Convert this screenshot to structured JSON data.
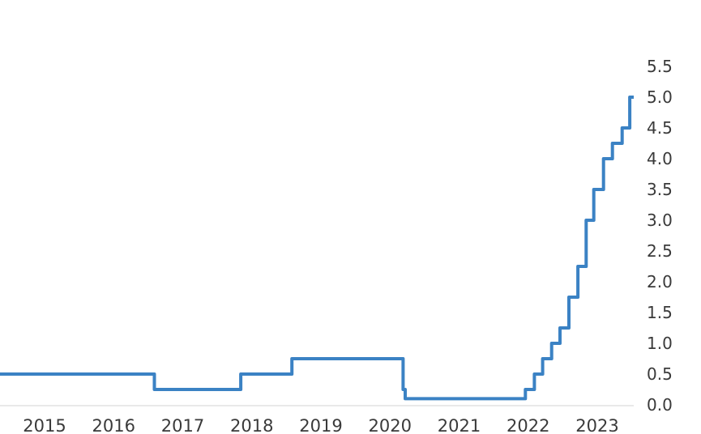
{
  "chart_data": {
    "type": "line",
    "subtype": "step-after",
    "title": "",
    "xlabel": "",
    "ylabel": "",
    "legend": "none",
    "grid": false,
    "y_axis_side": "right",
    "xlim": [
      2014.355,
      2023.528
    ],
    "ylim": [
      0.0,
      5.5
    ],
    "x_ticks": [
      2015,
      2016,
      2017,
      2018,
      2019,
      2020,
      2021,
      2022,
      2023
    ],
    "x_tick_labels": [
      "2015",
      "2016",
      "2017",
      "2018",
      "2019",
      "2020",
      "2021",
      "2022",
      "2023"
    ],
    "y_ticks": [
      0.0,
      0.5,
      1.0,
      1.5,
      2.0,
      2.5,
      3.0,
      3.5,
      4.0,
      4.5,
      5.0,
      5.5
    ],
    "y_tick_labels": [
      "0.0",
      "0.5",
      "1.0",
      "1.5",
      "2.0",
      "2.5",
      "3.0",
      "3.5",
      "4.0",
      "4.5",
      "5.0",
      "5.5"
    ],
    "series": [
      {
        "color": "#3b82c4",
        "points": [
          {
            "x": 2014.355,
            "y": 0.5
          },
          {
            "x": 2016.59,
            "y": 0.25
          },
          {
            "x": 2017.84,
            "y": 0.5
          },
          {
            "x": 2018.58,
            "y": 0.75
          },
          {
            "x": 2020.19,
            "y": 0.25
          },
          {
            "x": 2020.22,
            "y": 0.1
          },
          {
            "x": 2021.96,
            "y": 0.25
          },
          {
            "x": 2022.09,
            "y": 0.5
          },
          {
            "x": 2022.21,
            "y": 0.75
          },
          {
            "x": 2022.34,
            "y": 1.0
          },
          {
            "x": 2022.46,
            "y": 1.25
          },
          {
            "x": 2022.59,
            "y": 1.75
          },
          {
            "x": 2022.72,
            "y": 2.25
          },
          {
            "x": 2022.84,
            "y": 3.0
          },
          {
            "x": 2022.95,
            "y": 3.5
          },
          {
            "x": 2023.09,
            "y": 4.0
          },
          {
            "x": 2023.22,
            "y": 4.25
          },
          {
            "x": 2023.36,
            "y": 4.5
          },
          {
            "x": 2023.47,
            "y": 5.0
          }
        ]
      }
    ]
  },
  "colors": {
    "line": "#3b82c4",
    "axis_line": "#d3d3d3",
    "tick_text": "#3a3a3a",
    "background": "#ffffff"
  }
}
